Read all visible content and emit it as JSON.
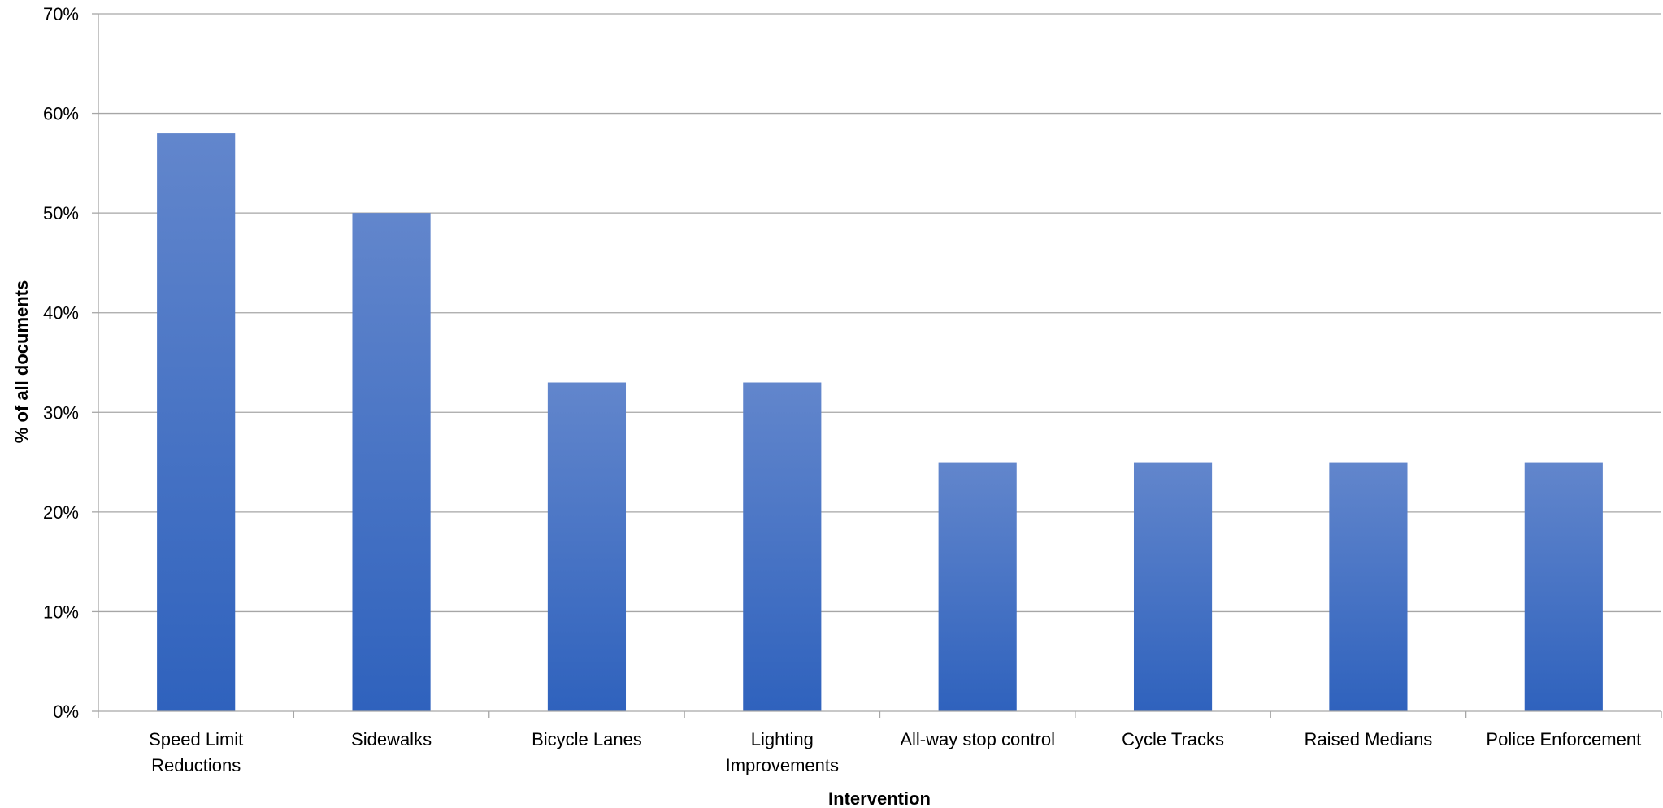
{
  "chart_data": {
    "type": "bar",
    "title": "",
    "xlabel": "Intervention",
    "ylabel": "% of all documents",
    "categories": [
      [
        "Speed Limit",
        "Reductions"
      ],
      [
        "Sidewalks"
      ],
      [
        "Bicycle Lanes"
      ],
      [
        "Lighting",
        "Improvements"
      ],
      [
        "All-way stop control"
      ],
      [
        "Cycle Tracks"
      ],
      [
        "Raised Medians"
      ],
      [
        "Police Enforcement"
      ]
    ],
    "values": [
      58,
      50,
      33,
      33,
      25,
      25,
      25,
      25
    ],
    "ylim": [
      0,
      70
    ],
    "yticks": [
      "0%",
      "10%",
      "20%",
      "30%",
      "40%",
      "50%",
      "60%",
      "70%"
    ],
    "grid": true,
    "bar_color_top": "#6286cc",
    "bar_color_bottom": "#2f62bd",
    "gridline_color": "#a6a6a6"
  }
}
